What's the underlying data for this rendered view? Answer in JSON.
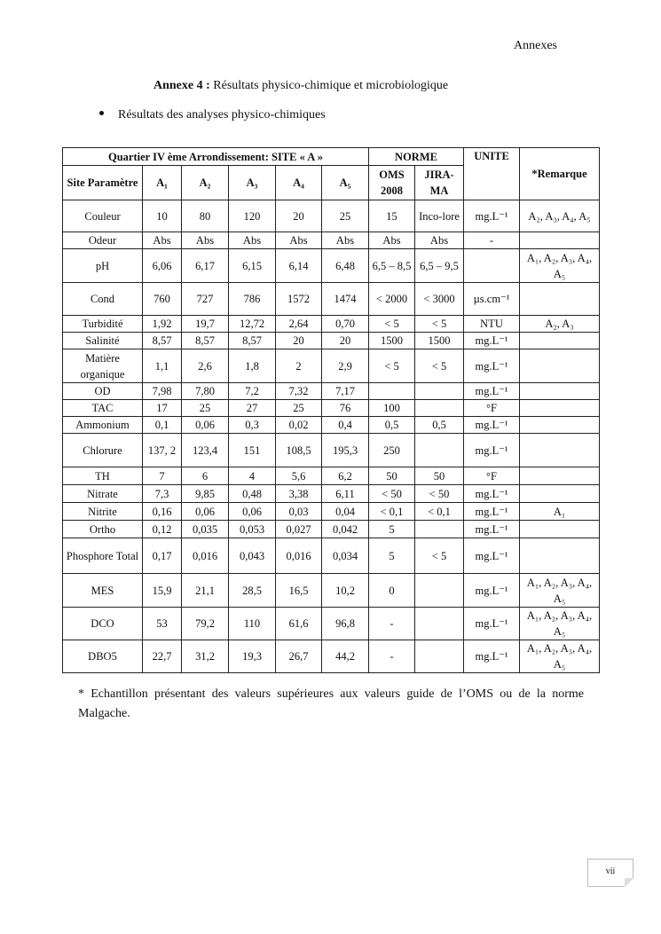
{
  "header": "Annexes",
  "title_bold": "Annexe 4 :",
  "title_rest": " Résultats physico-chimique et microbiologique",
  "bullet": "Résultats des analyses physico-chimiques",
  "table": {
    "group_site": "Quartier IV ème Arrondissement: SITE « A »",
    "group_norme": "NORME",
    "col_param": "Site Paramètre",
    "sites": [
      "A₁",
      "A₂",
      "A₃",
      "A₄",
      "A₅"
    ],
    "col_oms": "OMS 2008",
    "col_jirama": "JIRA-MA",
    "col_unite": "UNITE",
    "col_remarque": "*Remarque",
    "rows": [
      {
        "p": "Couleur",
        "v": [
          "10",
          "80",
          "120",
          "20",
          "25"
        ],
        "oms": "15",
        "jir": "Inco-lore",
        "u": "mg.L⁻¹",
        "r": "A₂, A₃, A₄, A₅",
        "h": 36
      },
      {
        "p": "Odeur",
        "v": [
          "Abs",
          "Abs",
          "Abs",
          "Abs",
          "Abs"
        ],
        "oms": "Abs",
        "jir": "Abs",
        "u": "-",
        "r": "",
        "h": 19
      },
      {
        "p": "pH",
        "v": [
          "6,06",
          "6,17",
          "6,15",
          "6,14",
          "6,48"
        ],
        "oms": "6,5 – 8,5",
        "jir": "6,5 – 9,5",
        "u": "",
        "r": "A₁, A₂, A₃, A₄, A₅",
        "h": 38
      },
      {
        "p": "Cond",
        "v": [
          "760",
          "727",
          "786",
          "1572",
          "1474"
        ],
        "oms": "< 2000",
        "jir": "< 3000",
        "u": "µs.cm⁻¹",
        "r": "",
        "h": 37
      },
      {
        "p": "Turbidité",
        "v": [
          "1,92",
          "19,7",
          "12,72",
          "2,64",
          "0,70"
        ],
        "oms": "< 5",
        "jir": "< 5",
        "u": "NTU",
        "r": "A₂, A₃",
        "h": 19
      },
      {
        "p": "Salinité",
        "v": [
          "8,57",
          "8,57",
          "8,57",
          "20",
          "20"
        ],
        "oms": "1500",
        "jir": "1500",
        "u": "mg.L⁻¹",
        "r": "",
        "h": 19
      },
      {
        "p": "Matière organique",
        "v": [
          "1,1",
          "2,6",
          "1,8",
          "2",
          "2,9"
        ],
        "oms": "< 5",
        "jir": "<  5",
        "u": "mg.L⁻¹",
        "r": "",
        "h": 38
      },
      {
        "p": "OD",
        "v": [
          "7,98",
          "7,80",
          "7,2",
          "7,32",
          "7,17"
        ],
        "oms": "",
        "jir": "",
        "u": "mg.L⁻¹",
        "r": "",
        "h": 19
      },
      {
        "p": "TAC",
        "v": [
          "17",
          "25",
          "27",
          "25",
          "76"
        ],
        "oms": "100",
        "jir": "",
        "u": "°F",
        "r": "",
        "h": 19
      },
      {
        "p": "Ammonium",
        "v": [
          "0,1",
          "0,06",
          "0,3",
          "0,02",
          "0,4"
        ],
        "oms": "0,5",
        "jir": "0,5",
        "u": "mg.L⁻¹",
        "r": "",
        "h": 18
      },
      {
        "p": "Chlorure",
        "v": [
          "137, 2",
          "123,4",
          "151",
          "108,5",
          "195,3"
        ],
        "oms": "250",
        "jir": "",
        "u": "mg.L⁻¹",
        "r": "",
        "h": 38
      },
      {
        "p": "TH",
        "v": [
          "7",
          "6",
          "4",
          "5,6",
          "6,2"
        ],
        "oms": "50",
        "jir": "50",
        "u": "°F",
        "r": "",
        "h": 20
      },
      {
        "p": "Nitrate",
        "v": [
          "7,3",
          "9,85",
          "0,48",
          "3,38",
          "6,11"
        ],
        "oms": "< 50",
        "jir": "<  50",
        "u": "mg.L⁻¹",
        "r": "",
        "h": 20
      },
      {
        "p": "Nitrite",
        "v": [
          "0,16",
          "0,06",
          "0,06",
          "0,03",
          "0,04"
        ],
        "oms": "< 0,1",
        "jir": "< 0,1",
        "u": "mg.L⁻¹",
        "r": "A₁",
        "h": 20
      },
      {
        "p": "Ortho",
        "v": [
          "0,12",
          "0,035",
          "0,053",
          "0,027",
          "0,042"
        ],
        "oms": "5",
        "jir": "",
        "u": "mg.L⁻¹",
        "r": "",
        "h": 20
      },
      {
        "p": "Phosphore Total",
        "v": [
          "0,17",
          "0,016",
          "0,043",
          "0,016",
          "0,034"
        ],
        "oms": "5",
        "jir": "< 5",
        "u": "mg.L⁻¹",
        "r": "",
        "h": 40
      },
      {
        "p": "MES",
        "v": [
          "15,9",
          "21,1",
          "28,5",
          "16,5",
          "10,2"
        ],
        "oms": "0",
        "jir": "",
        "u": "mg.L⁻¹",
        "r": "A₁, A₂, A₃, A₄, A₅",
        "h": 38
      },
      {
        "p": "DCO",
        "v": [
          "53",
          "79,2",
          "110",
          "61,6",
          "96,8"
        ],
        "oms": "-",
        "jir": "",
        "u": "mg.L⁻¹",
        "r": "A₁, A₂, A₃, A₄, A₅",
        "h": 37
      },
      {
        "p": "DBO5",
        "v": [
          "22,7",
          "31,2",
          "19,3",
          "26,7",
          "44,2"
        ],
        "oms": "-",
        "jir": "",
        "u": "mg.L⁻¹",
        "r": "A₁, A₂, A₃, A₄, A₅",
        "h": 37
      }
    ]
  },
  "footnote": "* Echantillon présentant des valeurs supérieures aux valeurs guide de l’OMS ou de la norme Malgache.",
  "page_number": "vii"
}
